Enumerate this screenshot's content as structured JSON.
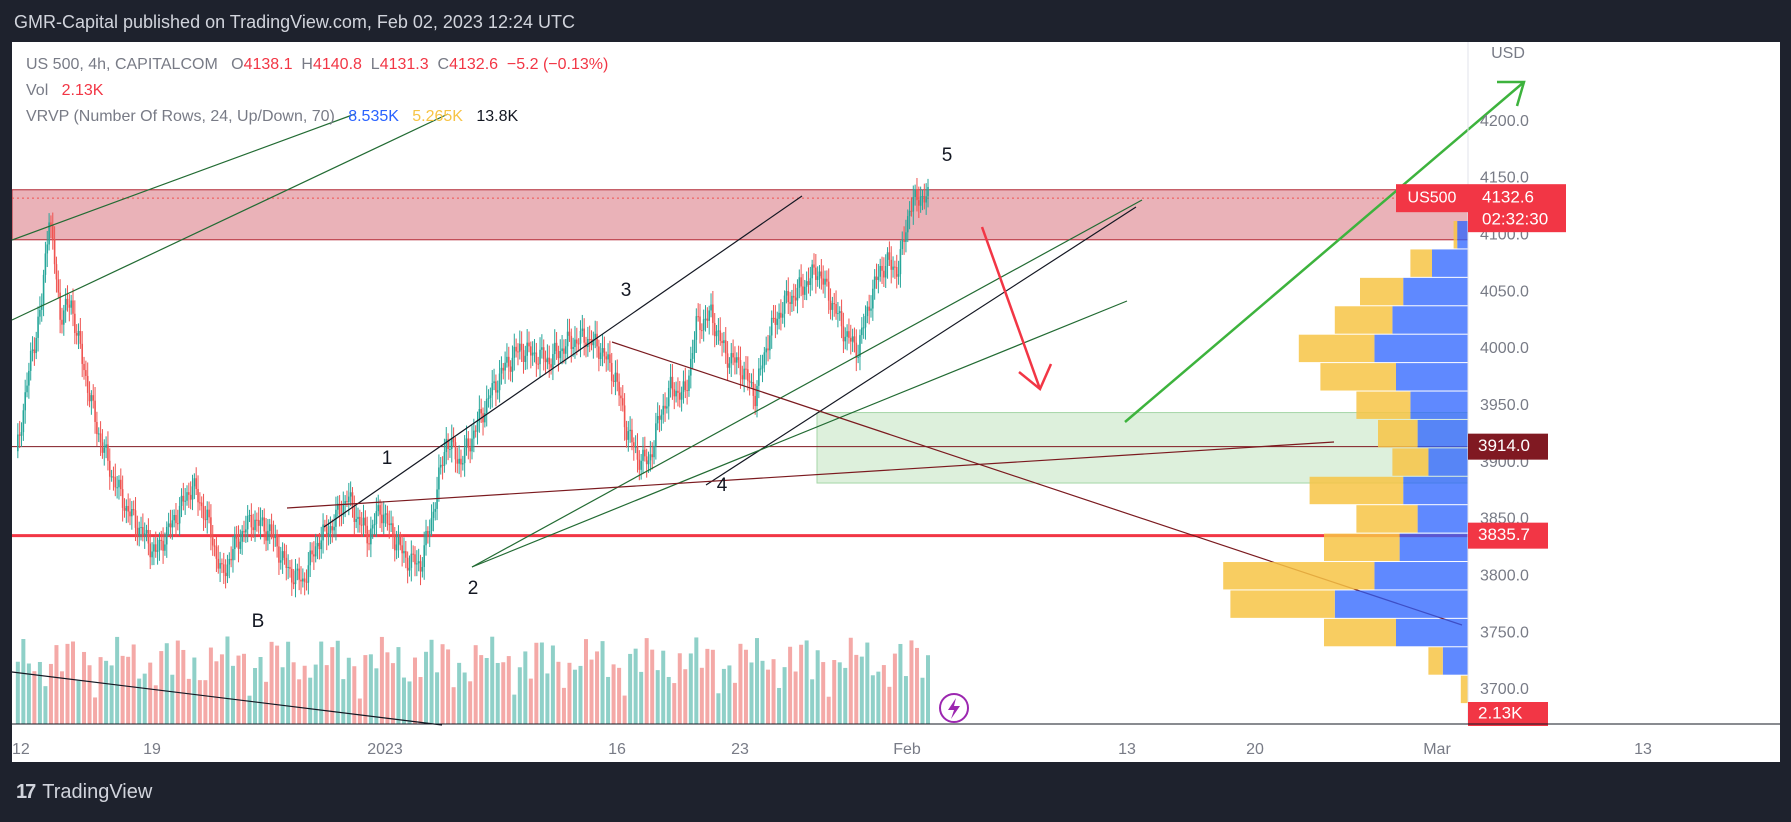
{
  "header": {
    "publish_line": "GMR-Capital published on TradingView.com, Feb 02, 2023 12:24 UTC"
  },
  "legend": {
    "symbol": "US 500, 4h, CAPITALCOM",
    "o_key": "O",
    "o_val": "4138.1",
    "h_key": "H",
    "h_val": "4140.8",
    "l_key": "L",
    "l_val": "4131.3",
    "c_key": "C",
    "c_val": "4132.6",
    "change": "−5.2 (−0.13%)",
    "vol_label": "Vol",
    "vol_value": "2.13K",
    "vrvp_label": "VRVP (Number Of Rows, 24, Up/Down, 70)",
    "vrvp_up": "8.535K",
    "vrvp_down": "5.265K",
    "vrvp_total": "13.8K"
  },
  "footer": {
    "brand_logo": "17",
    "brand_name": "TradingView"
  },
  "colors": {
    "up": "#26a69a",
    "down": "#ef5350",
    "red_line": "#f23645",
    "supply_zone": "#e6a5ab",
    "demand_zone": "#d7edd6",
    "green_arrow": "#3db33d",
    "red_arrow": "#f23645",
    "vrvp_up": "#2962ff",
    "vrvp_down": "#f7c445",
    "price_tag_dark": "#801922"
  },
  "chart_data": {
    "type": "candlestick",
    "symbol": "US 500",
    "timeframe": "4h",
    "currency_label": "USD",
    "y_range": [
      3670,
      4270
    ],
    "y_ticks": [
      "4200.0",
      "4150.0",
      "4100.0",
      "4050.0",
      "4000.0",
      "3950.0",
      "3900.0",
      "3850.0",
      "3800.0",
      "3750.0",
      "3700.0"
    ],
    "x_ticks": [
      "12",
      "19",
      "2023",
      "16",
      "23",
      "Feb",
      "13",
      "20",
      "Mar",
      "13"
    ],
    "price_tags": [
      {
        "label": "US500",
        "value": "4132.6",
        "countdown": "02:32:30"
      },
      {
        "value": "3914.0"
      },
      {
        "value": "3835.7"
      },
      {
        "value": "2.13K"
      }
    ],
    "wave_labels": [
      "B",
      "1",
      "2",
      "3",
      "4",
      "5"
    ],
    "horizontal_levels": [
      3914.0,
      3835.7
    ],
    "zones": [
      {
        "name": "supply",
        "top": 4140,
        "bottom": 4096
      },
      {
        "name": "demand",
        "top": 3944,
        "bottom": 3882
      }
    ],
    "ohlc_key_points": [
      {
        "t": "Dec 12",
        "close": 3905
      },
      {
        "t": "Dec 13",
        "high": 4140,
        "close": 4040
      },
      {
        "t": "Dec 16",
        "close": 3890
      },
      {
        "t": "Dec 22",
        "low": 3770,
        "label": "B"
      },
      {
        "t": "Dec 30",
        "high": 3872,
        "label": "1"
      },
      {
        "t": "Jan 05",
        "low": 3802,
        "label": "2"
      },
      {
        "t": "Jan 17",
        "high": 4015,
        "label": "3"
      },
      {
        "t": "Jan 19",
        "low": 3885,
        "label": "4"
      },
      {
        "t": "Feb 02",
        "high": 4150,
        "close": 4132.6,
        "label": "5"
      }
    ],
    "volume_profile": [
      {
        "price": 4125,
        "up": 0.0,
        "down": 0.0
      },
      {
        "price": 4100,
        "up": 0.3,
        "down": 0.1
      },
      {
        "price": 4075,
        "up": 1.0,
        "down": 0.6
      },
      {
        "price": 4050,
        "up": 1.8,
        "down": 1.2
      },
      {
        "price": 4025,
        "up": 2.1,
        "down": 1.6
      },
      {
        "price": 4000,
        "up": 2.6,
        "down": 2.1
      },
      {
        "price": 3975,
        "up": 2.0,
        "down": 2.1
      },
      {
        "price": 3950,
        "up": 1.6,
        "down": 1.5
      },
      {
        "price": 3925,
        "up": 1.4,
        "down": 1.1
      },
      {
        "price": 3900,
        "up": 1.1,
        "down": 1.0
      },
      {
        "price": 3875,
        "up": 1.8,
        "down": 2.6
      },
      {
        "price": 3850,
        "up": 1.4,
        "down": 1.7
      },
      {
        "price": 3825,
        "up": 1.9,
        "down": 2.1
      },
      {
        "price": 3800,
        "up": 2.6,
        "down": 4.2
      },
      {
        "price": 3775,
        "up": 3.7,
        "down": 2.9
      },
      {
        "price": 3750,
        "up": 2.0,
        "down": 2.0
      },
      {
        "price": 3725,
        "up": 0.7,
        "down": 0.4
      },
      {
        "price": 3700,
        "up": 0.0,
        "down": 0.2
      }
    ]
  }
}
